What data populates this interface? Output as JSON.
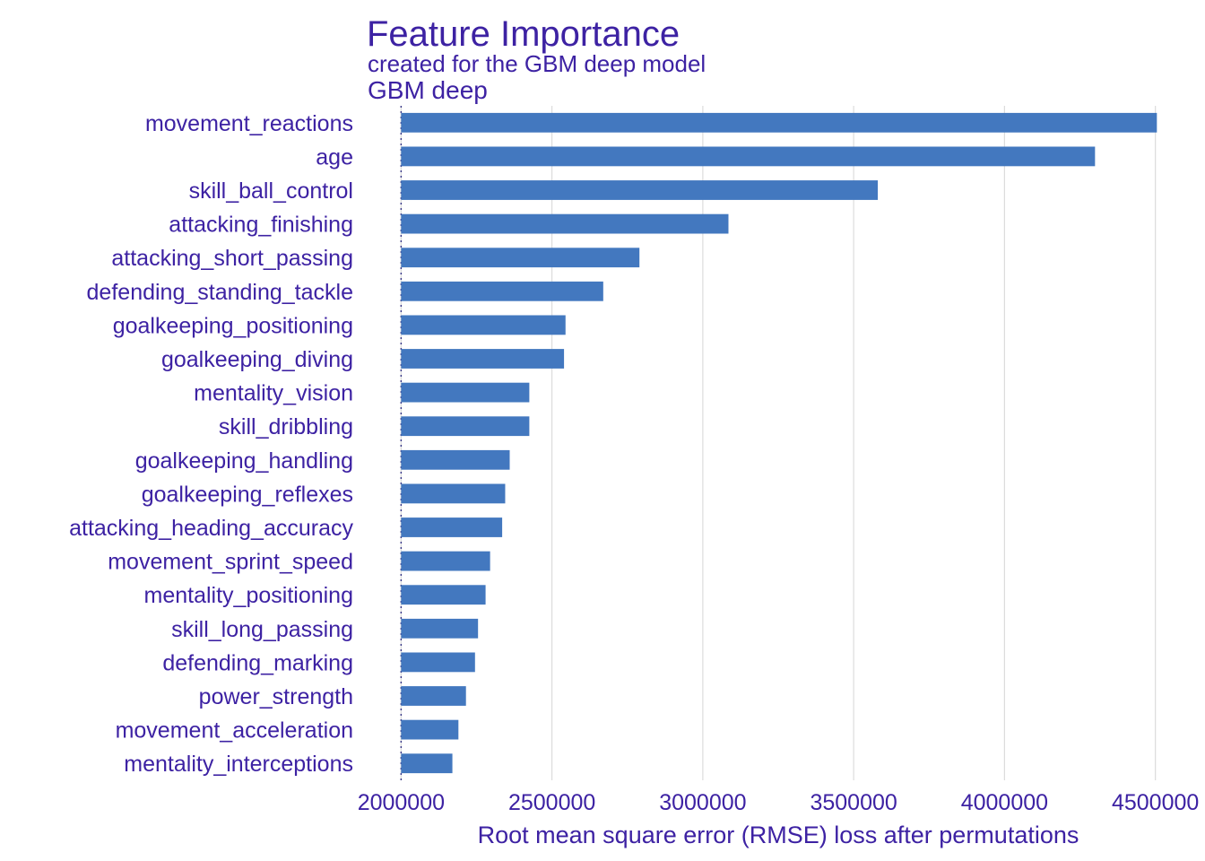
{
  "chart_data": {
    "type": "bar",
    "orientation": "horizontal",
    "title": "Feature Importance",
    "subtitle": "created for the GBM deep model",
    "panel_label": "GBM deep",
    "xlabel": "Root mean square error (RMSE) loss after permutations",
    "ylabel": "",
    "baseline": 2000000,
    "xlim": [
      1990000,
      4510000
    ],
    "xticks": [
      2000000,
      2500000,
      3000000,
      3500000,
      4000000,
      4500000
    ],
    "xtick_labels": [
      "2000000",
      "2500000",
      "3000000",
      "3500000",
      "4000000",
      "4500000"
    ],
    "grid": true,
    "bar_color": "#4378bf",
    "text_color": "#3d22a3",
    "categories": [
      "movement_reactions",
      "age",
      "skill_ball_control",
      "attacking_finishing",
      "attacking_short_passing",
      "defending_standing_tackle",
      "goalkeeping_positioning",
      "goalkeeping_diving",
      "mentality_vision",
      "skill_dribbling",
      "goalkeeping_handling",
      "goalkeeping_reflexes",
      "attacking_heading_accuracy",
      "movement_sprint_speed",
      "mentality_positioning",
      "skill_long_passing",
      "defending_marking",
      "power_strength",
      "movement_acceleration",
      "mentality_interceptions"
    ],
    "values": [
      4505000,
      4300000,
      3580000,
      3085000,
      2790000,
      2670000,
      2545000,
      2540000,
      2425000,
      2425000,
      2360000,
      2345000,
      2335000,
      2295000,
      2280000,
      2255000,
      2245000,
      2215000,
      2190000,
      2170000
    ]
  }
}
